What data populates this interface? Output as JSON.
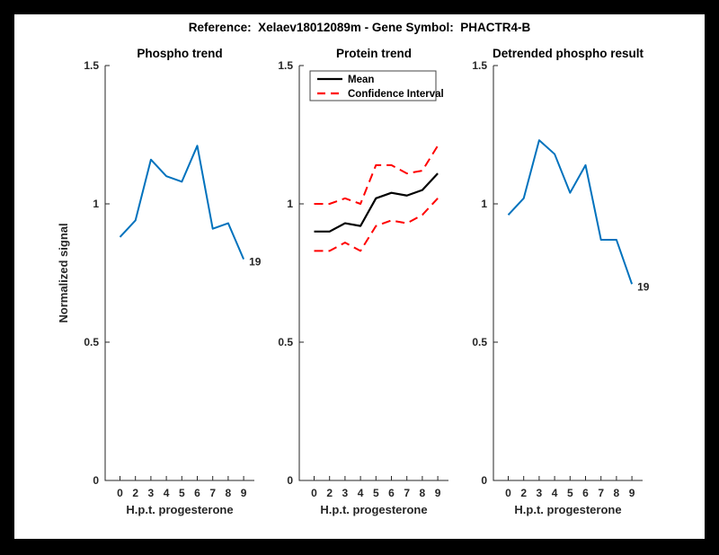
{
  "page": {
    "background": "#000000",
    "canvas_background": "#ffffff"
  },
  "title": "Reference:  Xelaev18012089m - Gene Symbol:  PHACTR4-B",
  "axis_style": {
    "spine_color": "#262626",
    "tick_label_color": "#262626"
  },
  "chart_data": [
    {
      "type": "line",
      "title": "Phospho trend",
      "xlabel": "H.p.t. progesterone",
      "ylabel": "Normalized signal",
      "x_tick_labels": [
        "0",
        "2",
        "3",
        "4",
        "5",
        "6",
        "7",
        "8",
        "9"
      ],
      "y_ticks": [
        0,
        0.5,
        1,
        1.5
      ],
      "y_tick_labels": [
        "0",
        "0.5",
        "1",
        "1.5"
      ],
      "ylim": [
        0,
        1.5
      ],
      "grid": false,
      "legend": null,
      "end_label": "19",
      "series": [
        {
          "name": "phospho-trend",
          "color": "#0072BD",
          "style": "solid",
          "linewidth": 2,
          "values": [
            0.88,
            0.94,
            1.16,
            1.1,
            1.08,
            1.21,
            0.91,
            0.93,
            0.8
          ]
        }
      ]
    },
    {
      "type": "line",
      "title": "Protein trend",
      "xlabel": "H.p.t. progesterone",
      "ylabel": null,
      "x_tick_labels": [
        "0",
        "2",
        "3",
        "4",
        "5",
        "6",
        "7",
        "8",
        "9"
      ],
      "y_ticks": [
        0,
        0.5,
        1,
        1.5
      ],
      "y_tick_labels": [
        "0",
        "0.5",
        "1",
        "1.5"
      ],
      "ylim": [
        0,
        1.5
      ],
      "grid": false,
      "legend": {
        "position": "top-left",
        "entries": [
          {
            "label": "Mean",
            "color": "#000000",
            "style": "solid"
          },
          {
            "label": "Confidence Interval",
            "color": "#FF0000",
            "style": "dashed"
          }
        ]
      },
      "end_label": null,
      "series": [
        {
          "name": "mean",
          "color": "#000000",
          "style": "solid",
          "linewidth": 2.2,
          "values": [
            0.9,
            0.9,
            0.93,
            0.92,
            1.02,
            1.04,
            1.03,
            1.05,
            1.11
          ]
        },
        {
          "name": "confidence-upper",
          "color": "#FF0000",
          "style": "dashed",
          "linewidth": 2,
          "values": [
            1.0,
            1.0,
            1.02,
            1.0,
            1.14,
            1.14,
            1.11,
            1.12,
            1.21
          ]
        },
        {
          "name": "confidence-lower",
          "color": "#FF0000",
          "style": "dashed",
          "linewidth": 2,
          "values": [
            0.83,
            0.83,
            0.86,
            0.83,
            0.92,
            0.94,
            0.93,
            0.96,
            1.02
          ]
        }
      ]
    },
    {
      "type": "line",
      "title": "Detrended phospho result",
      "xlabel": "H.p.t. progesterone",
      "ylabel": null,
      "x_tick_labels": [
        "0",
        "2",
        "3",
        "4",
        "5",
        "6",
        "7",
        "8",
        "9"
      ],
      "y_ticks": [
        0,
        0.5,
        1,
        1.5
      ],
      "y_tick_labels": [
        "0",
        "0.5",
        "1",
        "1.5"
      ],
      "ylim": [
        0,
        1.5
      ],
      "grid": false,
      "legend": null,
      "end_label": "19",
      "series": [
        {
          "name": "detrended-phospho",
          "color": "#0072BD",
          "style": "solid",
          "linewidth": 2,
          "values": [
            0.96,
            1.02,
            1.23,
            1.18,
            1.04,
            1.14,
            0.87,
            0.87,
            0.71
          ]
        }
      ]
    }
  ]
}
